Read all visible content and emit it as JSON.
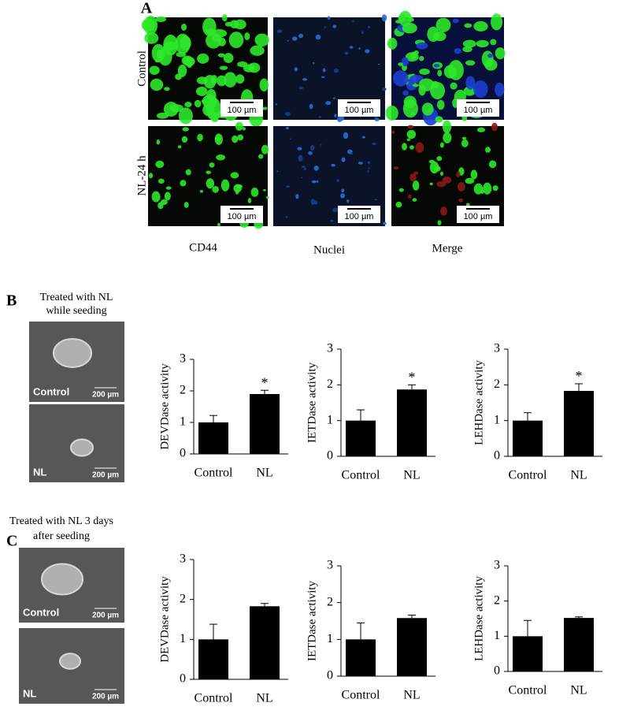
{
  "panel_a": {
    "label": "A",
    "rows": [
      "Control",
      "NL-24 h"
    ],
    "columns": [
      "CD44",
      "Nuclei",
      "Merge"
    ],
    "scale_bar": "100 µm"
  },
  "panel_b": {
    "label": "B",
    "caption": [
      "Treated with NL",
      "while seeding"
    ],
    "image_labels": [
      "Control",
      "NL"
    ],
    "scale_bar": "200 µm"
  },
  "panel_c": {
    "label": "C",
    "caption": [
      "Treated with NL 3 days",
      "after seeding"
    ],
    "image_labels": [
      "Control",
      "NL"
    ],
    "scale_bar": "200 µm"
  },
  "chart_data": [
    {
      "type": "bar",
      "ylabel": "DEVDase activity",
      "categories": [
        "Control",
        "NL"
      ],
      "values": [
        1.0,
        1.9
      ],
      "errors": [
        0.22,
        0.12
      ],
      "color": "#000000",
      "ylim": [
        0,
        3
      ],
      "yticks": [
        0,
        1,
        2,
        3
      ],
      "annotations": [
        {
          "text": "*",
          "x": "NL"
        }
      ]
    },
    {
      "type": "bar",
      "ylabel": "IETDase activity",
      "categories": [
        "Control",
        "NL"
      ],
      "values": [
        1.0,
        1.87
      ],
      "errors": [
        0.3,
        0.13
      ],
      "color": "#000000",
      "ylim": [
        0,
        3
      ],
      "yticks": [
        0,
        1,
        2,
        3
      ],
      "annotations": [
        {
          "text": "*",
          "x": "NL"
        }
      ]
    },
    {
      "type": "bar",
      "ylabel": "LEHDase activity",
      "categories": [
        "Control",
        "NL"
      ],
      "values": [
        1.0,
        1.83
      ],
      "errors": [
        0.22,
        0.2
      ],
      "color": "#000000",
      "ylim": [
        0,
        3
      ],
      "yticks": [
        0,
        1,
        2,
        3
      ],
      "annotations": [
        {
          "text": "*",
          "x": "NL"
        }
      ]
    },
    {
      "type": "bar",
      "ylabel": "DEVDase activity",
      "categories": [
        "Control",
        "NL"
      ],
      "values": [
        1.0,
        1.83
      ],
      "errors": [
        0.38,
        0.07
      ],
      "color": "#000000",
      "ylim": [
        0,
        3
      ],
      "yticks": [
        0,
        1,
        2,
        3
      ]
    },
    {
      "type": "bar",
      "ylabel": "IETDase activity",
      "categories": [
        "Control",
        "NL"
      ],
      "values": [
        1.0,
        1.58
      ],
      "errors": [
        0.45,
        0.08
      ],
      "color": "#000000",
      "ylim": [
        0,
        3
      ],
      "yticks": [
        0,
        1,
        2,
        3
      ]
    },
    {
      "type": "bar",
      "ylabel": "LEHDase activity",
      "categories": [
        "Control",
        "NL"
      ],
      "values": [
        1.0,
        1.52
      ],
      "errors": [
        0.45,
        0.03
      ],
      "color": "#000000",
      "ylim": [
        0,
        3
      ],
      "yticks": [
        0,
        1,
        2,
        3
      ]
    }
  ]
}
